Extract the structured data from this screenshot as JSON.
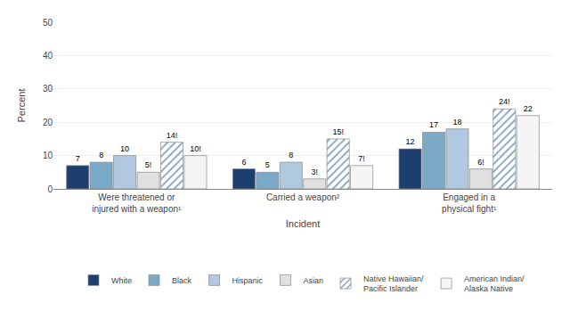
{
  "chart_data": {
    "type": "bar",
    "xlabel": "Incident",
    "ylabel": "Percent",
    "categories": [
      "Were threatened or\ninjured with a weapon¹",
      "Carried a weapon²",
      "Engaged in a\nphysical fight¹"
    ],
    "series": [
      {
        "name": "White",
        "color": "#1c3f6e",
        "values": [
          7,
          6,
          12
        ],
        "value_labels": [
          "7",
          "6",
          "12"
        ]
      },
      {
        "name": "Black",
        "color": "#7aaac8",
        "values": [
          8,
          5,
          17
        ],
        "value_labels": [
          "8",
          "5",
          "17"
        ]
      },
      {
        "name": "Hispanic",
        "color": "#b0c9e0",
        "values": [
          10,
          8,
          18
        ],
        "value_labels": [
          "10",
          "8",
          "18"
        ]
      },
      {
        "name": "Asian",
        "color": "#e0e0e0",
        "values": [
          5,
          3,
          6
        ],
        "value_labels": [
          "5!",
          "3!",
          "6!"
        ]
      },
      {
        "name": "Native Hawaiian/\nPacific Islander",
        "color": "#ffffff",
        "marker": "hatch",
        "values": [
          14,
          15,
          24
        ],
        "value_labels": [
          "14!",
          "15!",
          "24!"
        ]
      },
      {
        "name": "American Indian/\nAlaska Native",
        "color": "#f5f5f5",
        "values": [
          10,
          7,
          22
        ],
        "value_labels": [
          "10!",
          "7!",
          "22"
        ]
      }
    ],
    "ylim": [
      0,
      50
    ],
    "yticks": [
      0,
      10,
      20,
      30,
      40,
      50
    ],
    "grid": true,
    "legend": "bottom",
    "data_labels": true
  }
}
